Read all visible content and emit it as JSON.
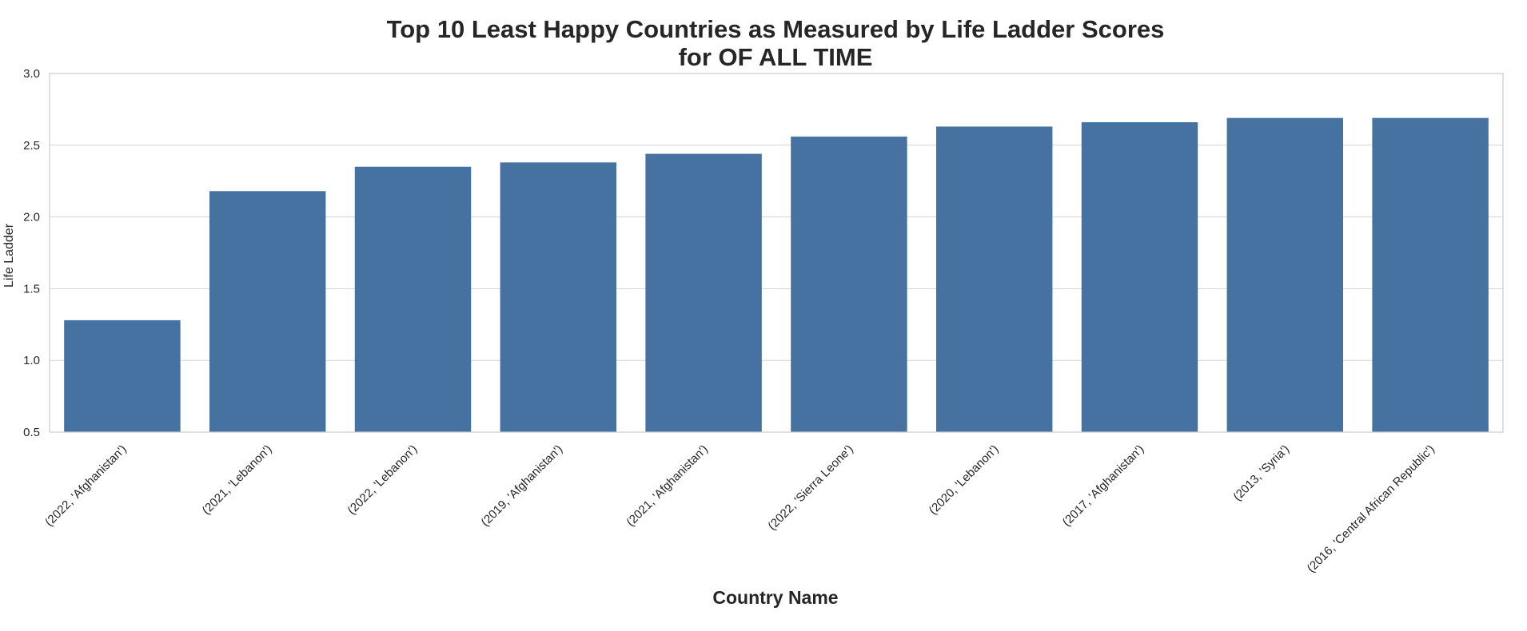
{
  "chart_data": {
    "type": "bar",
    "title_line1": "Top 10 Least Happy Countries as Measured by Life Ladder Scores",
    "title_line2": "for OF ALL TIME",
    "xlabel": "Country Name",
    "ylabel": "Life Ladder",
    "ylim": [
      0.5,
      3.0
    ],
    "yticks": [
      0.5,
      1.0,
      1.5,
      2.0,
      2.5,
      3.0
    ],
    "ytick_labels": [
      "0.5",
      "1.0",
      "1.5",
      "2.0",
      "2.5",
      "3.0"
    ],
    "grid": true,
    "bar_color": "#4572a0",
    "categories": [
      "(2022, 'Afghanistan')",
      "(2021, 'Lebanon')",
      "(2022, 'Lebanon')",
      "(2019, 'Afghanistan')",
      "(2021, 'Afghanistan')",
      "(2022, 'Sierra Leone')",
      "(2020, 'Lebanon')",
      "(2017, 'Afghanistan')",
      "(2013, 'Syria')",
      "(2016, 'Central African Republic')"
    ],
    "values": [
      1.28,
      2.18,
      2.35,
      2.38,
      2.44,
      2.56,
      2.63,
      2.66,
      2.69,
      2.69
    ]
  }
}
